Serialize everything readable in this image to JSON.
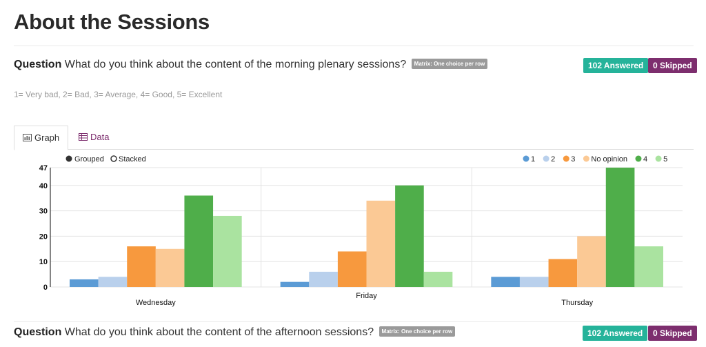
{
  "page": {
    "title": "About the Sessions"
  },
  "question1": {
    "label": "Question",
    "text": "What do you think about the content of the morning plenary sessions?",
    "type_badge": "Matrix: One choice per row",
    "answered": "102 Answered",
    "skipped": "0 Skipped",
    "scale_note": "1= Very bad, 2= Bad, 3= Average, 4= Good, 5= Excellent"
  },
  "tabs": {
    "graph": "Graph",
    "data": "Data",
    "graph_icon": "bar-chart-icon",
    "data_icon": "table-icon"
  },
  "chart_controls": {
    "grouped": "Grouped",
    "stacked": "Stacked",
    "selected": "grouped"
  },
  "chart_data": {
    "type": "bar",
    "mode": "grouped",
    "categories": [
      "Wednesday",
      "Friday",
      "Thursday"
    ],
    "series": [
      {
        "name": "1",
        "color": "#5b9bd5",
        "values": [
          3,
          2,
          4
        ]
      },
      {
        "name": "2",
        "color": "#b9d0ec",
        "values": [
          4,
          6,
          4
        ]
      },
      {
        "name": "3",
        "color": "#f7993e",
        "values": [
          16,
          14,
          11
        ]
      },
      {
        "name": "No opinion",
        "color": "#fbc995",
        "values": [
          15,
          34,
          20
        ]
      },
      {
        "name": "4",
        "color": "#4fae4a",
        "values": [
          36,
          40,
          47
        ]
      },
      {
        "name": "5",
        "color": "#aae3a0",
        "values": [
          28,
          6,
          16
        ]
      }
    ],
    "ylim": [
      0,
      47
    ],
    "yticks": [
      0,
      10,
      20,
      30,
      40,
      47
    ],
    "grid": true,
    "legend_position": "top-right",
    "title": "",
    "xlabel": "",
    "ylabel": ""
  },
  "question2": {
    "label": "Question",
    "text": "What do you think about the content of the afternoon sessions?",
    "type_badge": "Matrix: One choice per row",
    "answered": "102 Answered",
    "skipped": "0 Skipped"
  }
}
